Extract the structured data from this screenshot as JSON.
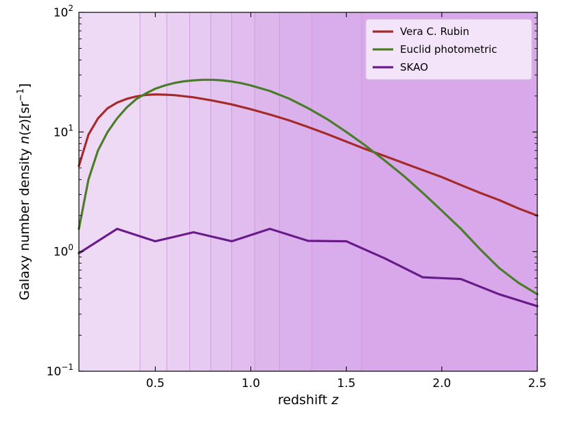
{
  "chart_data": {
    "type": "line",
    "xlabel": "redshift z",
    "ylabel": "Galaxy number density n(z)[sr⁻¹]",
    "xlim": [
      0.1,
      2.5
    ],
    "ylim": [
      0.1,
      100
    ],
    "yscale": "log",
    "x_ticks": [
      0.5,
      1.0,
      1.5,
      2.0,
      2.5
    ],
    "x_tick_labels": [
      "0.5",
      "1.0",
      "1.5",
      "2.0",
      "2.5"
    ],
    "y_ticks": [
      0.1,
      1,
      10,
      100
    ],
    "y_tick_labels": [
      {
        "base": "10",
        "exp": "−1"
      },
      {
        "base": "10",
        "exp": "0"
      },
      {
        "base": "10",
        "exp": "1"
      },
      {
        "base": "10",
        "exp": "2"
      }
    ],
    "background_bins": [
      {
        "x0": 0.1,
        "x1": 0.42,
        "color": "#efdaf5"
      },
      {
        "x0": 0.42,
        "x1": 0.56,
        "color": "#ecd5f3"
      },
      {
        "x0": 0.56,
        "x1": 0.68,
        "color": "#e9d0f2"
      },
      {
        "x0": 0.68,
        "x1": 0.79,
        "color": "#e6caf1"
      },
      {
        "x0": 0.79,
        "x1": 0.9,
        "color": "#e3c3ef"
      },
      {
        "x0": 0.9,
        "x1": 1.02,
        "color": "#e0bdee"
      },
      {
        "x0": 1.02,
        "x1": 1.15,
        "color": "#ddb6ec"
      },
      {
        "x0": 1.15,
        "x1": 1.32,
        "color": "#dbb1ec"
      },
      {
        "x0": 1.32,
        "x1": 1.58,
        "color": "#d9acec"
      },
      {
        "x0": 1.58,
        "x1": 2.5,
        "color": "#d8a8eb"
      }
    ],
    "series": [
      {
        "name": "Vera C. Rubin",
        "color": "#a52a2a",
        "x": [
          0.1,
          0.15,
          0.2,
          0.25,
          0.3,
          0.35,
          0.4,
          0.45,
          0.5,
          0.55,
          0.6,
          0.7,
          0.8,
          0.9,
          1.0,
          1.1,
          1.2,
          1.3,
          1.4,
          1.5,
          1.6,
          1.7,
          1.8,
          1.9,
          2.0,
          2.1,
          2.2,
          2.3,
          2.4,
          2.5
        ],
        "y": [
          5.2,
          9.5,
          13.0,
          15.8,
          17.6,
          18.9,
          19.8,
          20.4,
          20.6,
          20.5,
          20.3,
          19.5,
          18.3,
          17.0,
          15.5,
          14.0,
          12.5,
          11.0,
          9.6,
          8.3,
          7.2,
          6.3,
          5.5,
          4.8,
          4.2,
          3.6,
          3.1,
          2.7,
          2.3,
          2.0
        ]
      },
      {
        "name": "Euclid photometric",
        "color": "#4a7d2a",
        "x": [
          0.1,
          0.15,
          0.2,
          0.25,
          0.3,
          0.35,
          0.4,
          0.45,
          0.5,
          0.55,
          0.6,
          0.65,
          0.7,
          0.75,
          0.8,
          0.85,
          0.9,
          0.95,
          1.0,
          1.1,
          1.2,
          1.3,
          1.4,
          1.5,
          1.6,
          1.7,
          1.8,
          1.9,
          2.0,
          2.1,
          2.2,
          2.3,
          2.4,
          2.5
        ],
        "y": [
          1.55,
          4.0,
          7.0,
          10.0,
          13.0,
          16.0,
          18.8,
          21.0,
          23.0,
          24.5,
          25.7,
          26.5,
          27.0,
          27.3,
          27.3,
          27.0,
          26.4,
          25.6,
          24.5,
          22.0,
          19.0,
          15.8,
          12.8,
          10.0,
          7.7,
          5.8,
          4.3,
          3.1,
          2.2,
          1.55,
          1.05,
          0.73,
          0.55,
          0.44
        ]
      },
      {
        "name": "SKAO",
        "color": "#6a1b8a",
        "x": [
          0.1,
          0.3,
          0.5,
          0.7,
          0.9,
          1.1,
          1.3,
          1.5,
          1.7,
          1.9,
          2.1,
          2.3,
          2.5
        ],
        "y": [
          0.97,
          1.55,
          1.22,
          1.45,
          1.22,
          1.55,
          1.23,
          1.22,
          0.88,
          0.61,
          0.59,
          0.44,
          0.35
        ]
      }
    ],
    "legend_position": "top-right"
  }
}
